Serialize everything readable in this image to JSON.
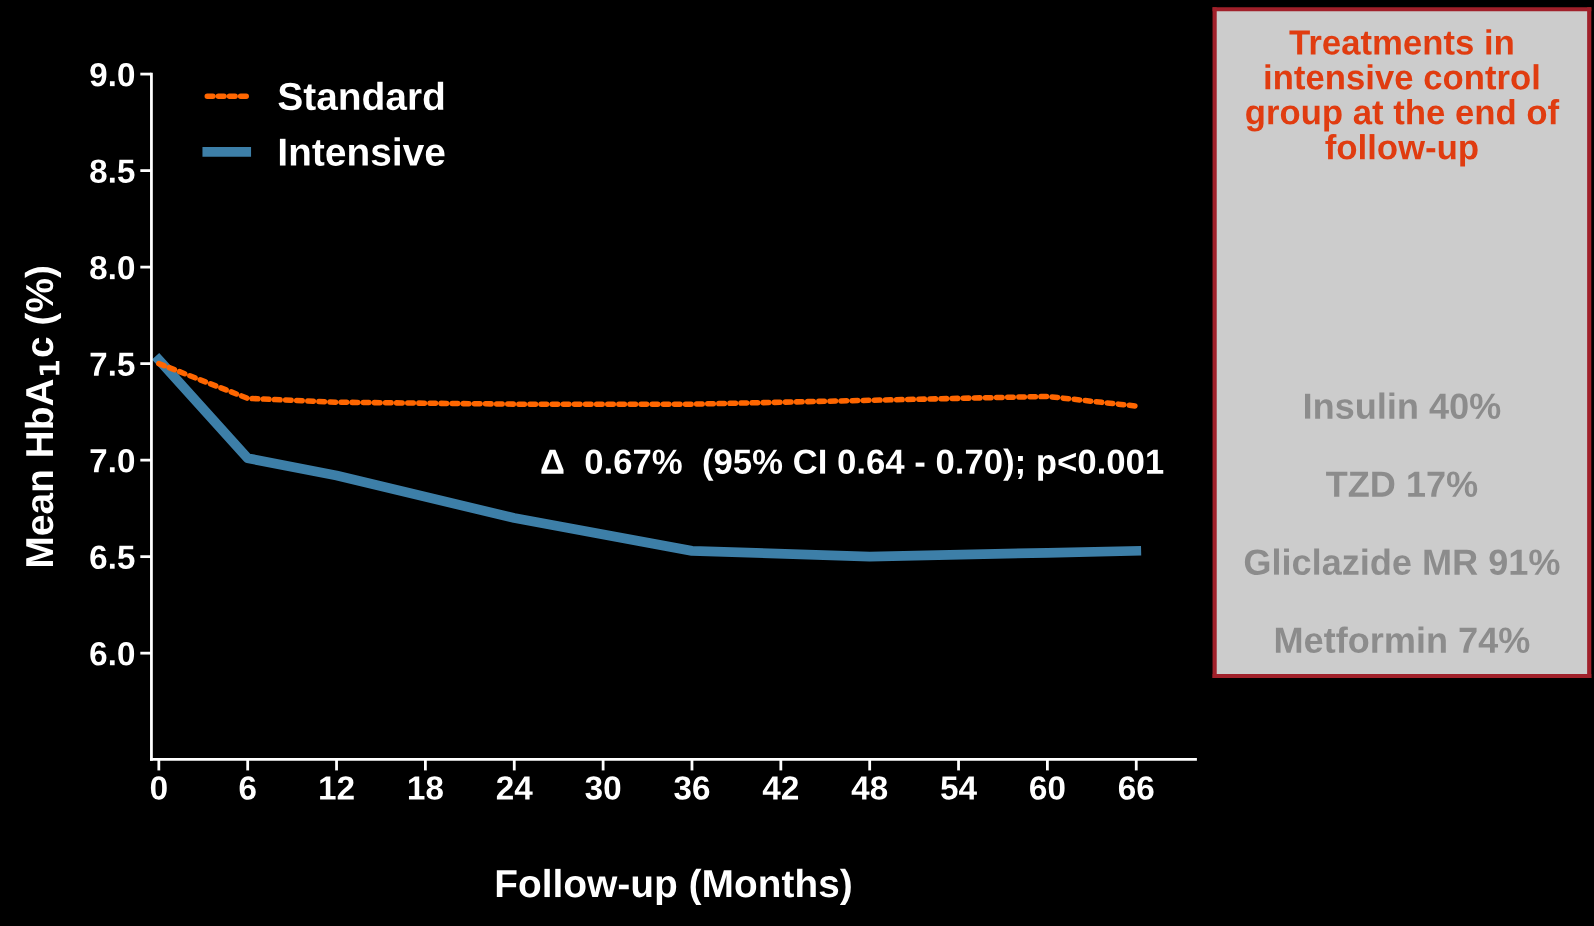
{
  "chart_data": [
    {
      "type": "line",
      "xlabel": "Follow-up (Months)",
      "ylabel": "Mean HbA$_{1}$c (%)",
      "x": [
        0,
        6,
        12,
        24,
        36,
        48,
        60,
        66
      ],
      "series": [
        {
          "name": "Standard",
          "color": "#ff6600",
          "line_style": "dotted",
          "values": [
            7.5,
            7.32,
            7.3,
            7.29,
            7.29,
            7.31,
            7.33,
            7.28
          ]
        },
        {
          "name": "Intensive",
          "color": "#3d7fa8",
          "line_style": "solid",
          "values": [
            7.52,
            7.01,
            6.92,
            6.7,
            6.53,
            6.5,
            6.52,
            6.53
          ]
        }
      ],
      "xlim": [
        -0.5,
        70
      ],
      "ylim": [
        5.45,
        9.0
      ],
      "xticks": [
        0,
        6,
        12,
        18,
        24,
        30,
        36,
        42,
        48,
        54,
        60,
        66
      ],
      "yticks": [
        {
          "value": 6.0,
          "label": "6.0"
        },
        {
          "value": 6.5,
          "label": "6.5"
        },
        {
          "value": 7.0,
          "label": "7.0"
        },
        {
          "value": 7.5,
          "label": "7.5"
        },
        {
          "value": 8.0,
          "label": "8.0"
        },
        {
          "value": 8.5,
          "label": "8.5"
        },
        {
          "value": 9.0,
          "label": "9.0"
        }
      ],
      "grid": false,
      "legend": "top left",
      "marker": "none",
      "annotations": [
        "Δ  0.67%  (95% CI 0.64 - 0.70); p<0.001"
      ]
    },
    {
      "type": "other",
      "title": "Treatments in intensive control group at the end of follow-up",
      "annotations": [
        "Insulin 40%",
        "TZD 17%",
        "Gliclazide MR 91%",
        "Metformin 74%"
      ]
    }
  ]
}
